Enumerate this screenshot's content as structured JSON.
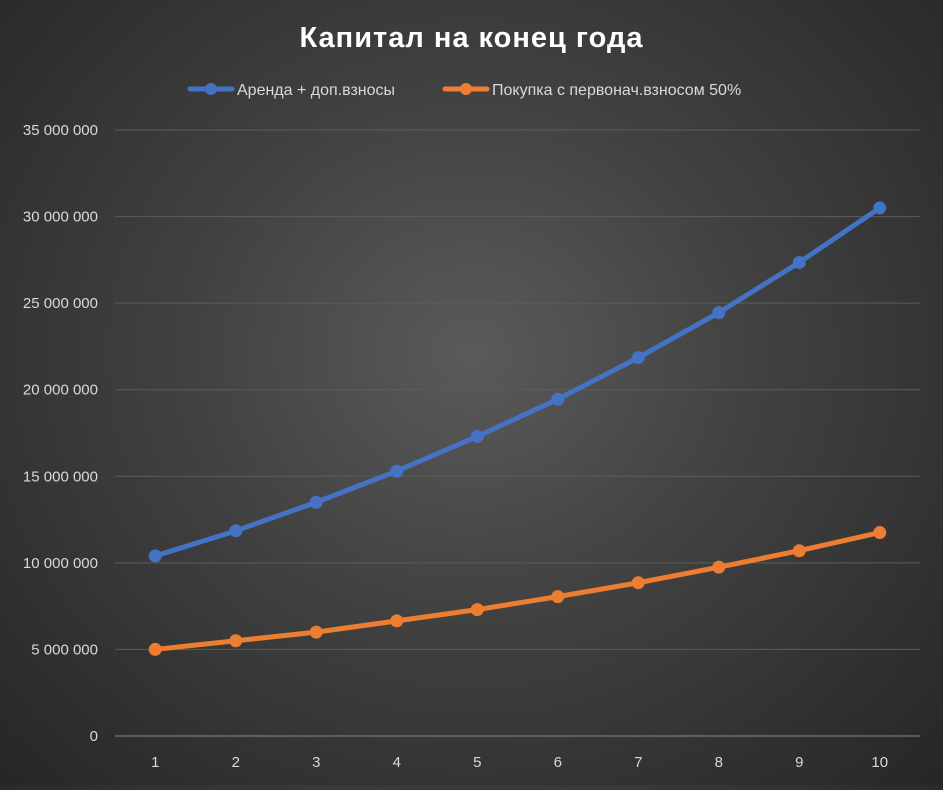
{
  "chart_data": {
    "type": "line",
    "title": "Капитал на конец года",
    "xlabel": "",
    "ylabel": "",
    "categories": [
      "1",
      "2",
      "3",
      "4",
      "5",
      "6",
      "7",
      "8",
      "9",
      "10"
    ],
    "ylim": [
      0,
      35000000
    ],
    "yticks": [
      0,
      5000000,
      10000000,
      15000000,
      20000000,
      25000000,
      30000000,
      35000000
    ],
    "ytick_labels": [
      "0",
      "5 000 000",
      "10 000 000",
      "15 000 000",
      "20 000 000",
      "25 000 000",
      "30 000 000",
      "35 000 000"
    ],
    "grid": true,
    "legend_position": "top",
    "series": [
      {
        "name": "Аренда + доп.взносы",
        "color": "#4472C4",
        "values": [
          10400000,
          11850000,
          13500000,
          15300000,
          17300000,
          19450000,
          21850000,
          24450000,
          27350000,
          30500000
        ]
      },
      {
        "name": "Покупка с первонач.взносом 50%",
        "color": "#ED7D31",
        "values": [
          5000000,
          5500000,
          6000000,
          6650000,
          7300000,
          8050000,
          8850000,
          9750000,
          10700000,
          11750000
        ]
      }
    ]
  }
}
